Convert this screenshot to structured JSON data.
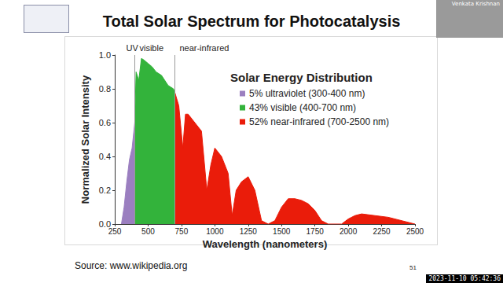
{
  "chart_data": {
    "type": "area",
    "title": "Total Solar Spectrum for Photocatalysis",
    "legend_title": "Solar Energy Distribution",
    "x_label": "Wavelength (nanometers)",
    "y_label": "Normalized Solar Intensity",
    "annotations": [
      "UV",
      "visible",
      "near-infrared"
    ],
    "xlim": [
      250,
      2500
    ],
    "xticks": [
      250,
      500,
      750,
      1000,
      1250,
      1500,
      1750,
      2000,
      2250,
      2500
    ],
    "ylim": [
      0,
      1
    ],
    "yticks": [
      {
        "value": 0,
        "label": "0.0"
      },
      0.2,
      0.4,
      0.6,
      0.8,
      {
        "value": 1,
        "label": "1.0"
      }
    ],
    "grid": false,
    "legend": "upper right",
    "series": [
      {
        "name": "5% ultraviolet (300-400 nm)",
        "color": "#9b7fc0",
        "x": [
          300,
          320,
          340,
          360,
          380,
          400
        ],
        "values": [
          0,
          0.1,
          0.25,
          0.38,
          0.45,
          0.6
        ]
      },
      {
        "name": "43% visible (400-700 nm)",
        "color": "#33b33b",
        "x": [
          400,
          410,
          430,
          450,
          470,
          500,
          530,
          560,
          600,
          650,
          690,
          700
        ],
        "values": [
          0.6,
          0.9,
          0.85,
          0.98,
          0.97,
          0.95,
          0.93,
          0.9,
          0.88,
          0.82,
          0.8,
          0.78
        ]
      },
      {
        "name": "52% near-infrared (700-2500 nm)",
        "color": "#ea1c0a",
        "x": [
          700,
          730,
          760,
          780,
          800,
          850,
          900,
          940,
          970,
          1000,
          1050,
          1100,
          1130,
          1160,
          1200,
          1250,
          1300,
          1350,
          1400,
          1450,
          1500,
          1550,
          1600,
          1650,
          1700,
          1750,
          1800,
          1850,
          1950,
          2000,
          2050,
          2100,
          2200,
          2300,
          2400,
          2500
        ],
        "values": [
          0.78,
          0.7,
          0.45,
          0.65,
          0.65,
          0.6,
          0.55,
          0.2,
          0.35,
          0.45,
          0.4,
          0.3,
          0.05,
          0.2,
          0.25,
          0.28,
          0.2,
          0.02,
          0,
          0.02,
          0.1,
          0.15,
          0.15,
          0.14,
          0.12,
          0.08,
          0.02,
          0,
          0,
          0.03,
          0.05,
          0.06,
          0.05,
          0.04,
          0.02,
          0
        ]
      }
    ]
  },
  "slide": {
    "source": "Source: www.wikipedia.org",
    "page": "51",
    "presenter": "Venkata Krishnan",
    "timestamp": "2023-11-10 05:42:36"
  }
}
